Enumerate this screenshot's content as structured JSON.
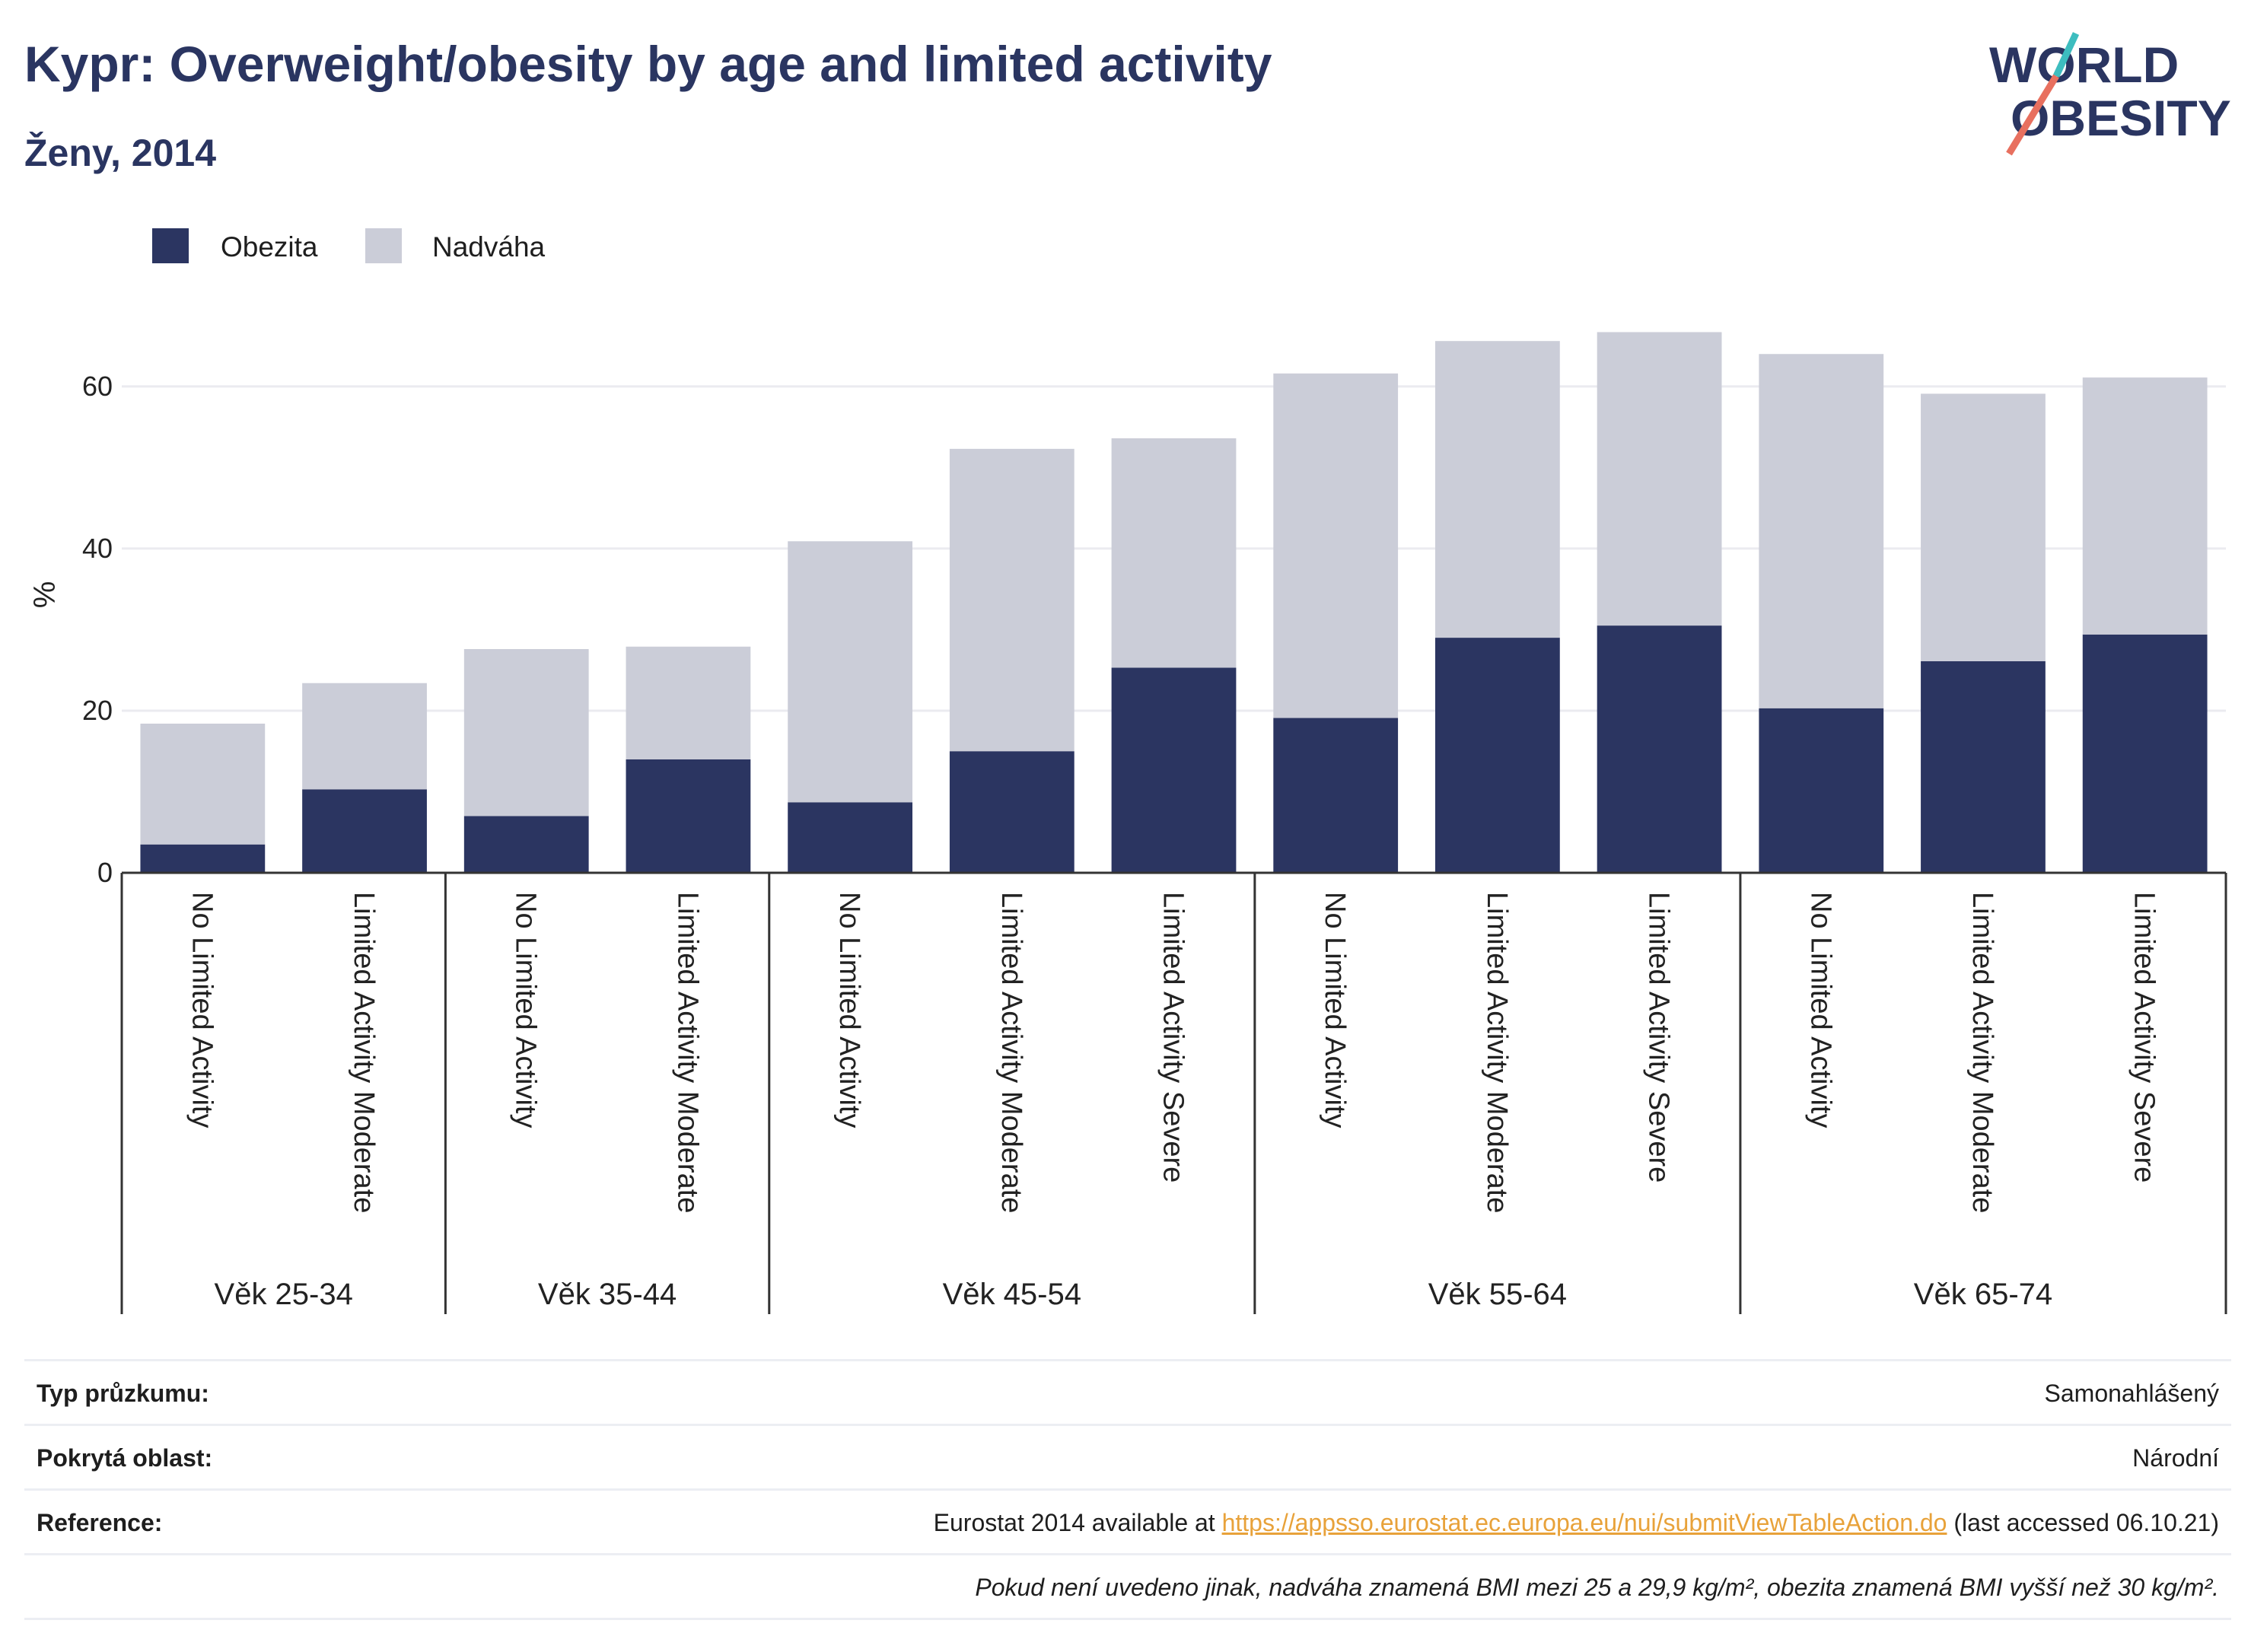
{
  "header": {
    "title": "Kypr: Overweight/obesity by age and limited activity",
    "subtitle": "Ženy, 2014",
    "logo_text": "WORLD OBESITY"
  },
  "colors": {
    "obesity": "#2b3561",
    "overweight": "#cbcdd8",
    "accent_teal": "#3dbdbf",
    "accent_red": "#e8705f",
    "link": "#e8a23a"
  },
  "chart_data": {
    "type": "bar",
    "stacked": true,
    "ylabel": "%",
    "ylim": [
      0,
      72
    ],
    "yticks": [
      0,
      20,
      40,
      60
    ],
    "grid": true,
    "legend_position": "top-left",
    "categories": [
      "No Limited Activity",
      "Limited Activity Moderate",
      "No Limited Activity",
      "Limited Activity Moderate",
      "No Limited Activity",
      "Limited Activity Moderate",
      "Limited Activity Severe",
      "No Limited Activity",
      "Limited Activity Moderate",
      "Limited Activity Severe",
      "No Limited Activity",
      "Limited Activity Moderate",
      "Limited Activity Severe"
    ],
    "groups": [
      {
        "label": "Věk 25-34",
        "count": 2
      },
      {
        "label": "Věk 35-44",
        "count": 2
      },
      {
        "label": "Věk 45-54",
        "count": 3
      },
      {
        "label": "Věk 55-64",
        "count": 3
      },
      {
        "label": "Věk 65-74",
        "count": 3
      }
    ],
    "series": [
      {
        "name": "Obezita",
        "values": [
          3.5,
          10.3,
          7.0,
          14.0,
          8.7,
          15.0,
          25.3,
          19.1,
          29.0,
          30.5,
          20.3,
          26.1,
          29.4
        ]
      },
      {
        "name": "Nadváha",
        "values": [
          14.9,
          13.1,
          20.6,
          13.9,
          32.2,
          37.3,
          28.3,
          42.5,
          36.6,
          36.2,
          43.7,
          33.0,
          31.7
        ]
      }
    ]
  },
  "footer": {
    "rows": [
      {
        "key": "Typ průzkumu:",
        "value": "Samonahlášený"
      },
      {
        "key": "Pokrytá oblast:",
        "value": "Národní"
      },
      {
        "key": "Reference:",
        "value_pre": "Eurostat 2014 available at ",
        "link": "https://appsso.eurostat.ec.europa.eu/nui/submitViewTableAction.do",
        "value_post": " (last accessed 06.10.21)"
      }
    ],
    "note": "Pokud není uvedeno jinak, nadváha znamená BMI mezi 25 a 29,9 kg/m², obezita znamená BMI vyšší než 30 kg/m²."
  }
}
